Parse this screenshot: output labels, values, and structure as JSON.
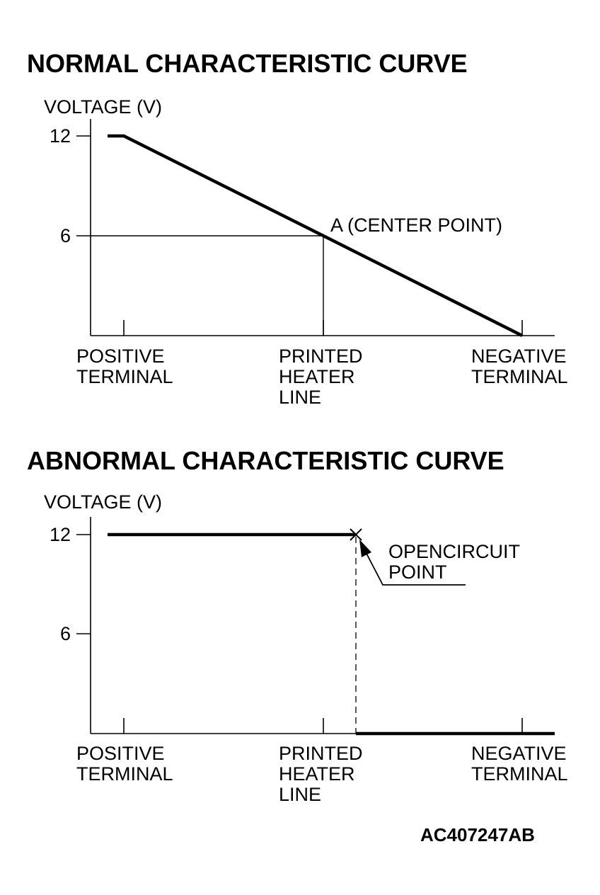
{
  "diagram_code": "AC407247AB",
  "chart_data": [
    {
      "type": "line",
      "title": "NORMAL CHARACTERISTIC CURVE",
      "ylabel": "VOLTAGE (V)",
      "ylim": [
        0,
        12
      ],
      "yticks": [
        "12",
        "6"
      ],
      "x_categories": [
        [
          "POSITIVE",
          "TERMINAL"
        ],
        [
          "PRINTED",
          "HEATER",
          "LINE"
        ],
        [
          "NEGATIVE",
          "TERMINAL"
        ]
      ],
      "series": [
        {
          "values": [
            12,
            6,
            0
          ]
        }
      ],
      "annotations": [
        {
          "text": "A (CENTER POINT)",
          "x_index": 1,
          "y": 6
        }
      ]
    },
    {
      "type": "line",
      "title": "ABNORMAL CHARACTERISTIC CURVE",
      "ylabel": "VOLTAGE (V)",
      "ylim": [
        0,
        12
      ],
      "yticks": [
        "12",
        "6"
      ],
      "x_categories": [
        [
          "POSITIVE",
          "TERMINAL"
        ],
        [
          "PRINTED",
          "HEATER",
          "LINE"
        ],
        [
          "NEGATIVE",
          "TERMINAL"
        ]
      ],
      "series": [
        {
          "segments": [
            {
              "y": 12,
              "from": "start",
              "to": "break"
            },
            {
              "y": 0,
              "from": "break",
              "to": "end"
            }
          ]
        }
      ],
      "annotations": [
        {
          "text": [
            "OPENCIRCUIT",
            "POINT"
          ],
          "marker": "x",
          "y": 12
        }
      ]
    }
  ]
}
